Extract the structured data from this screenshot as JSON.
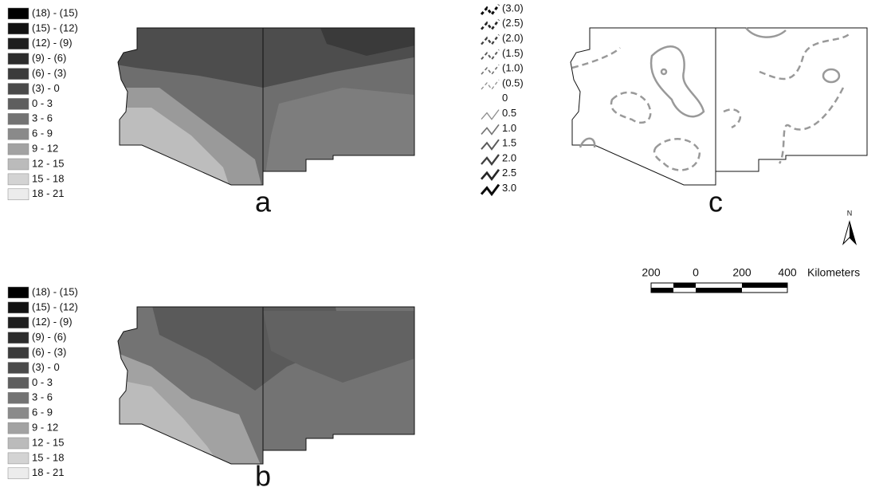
{
  "legend_a": {
    "items": [
      "(18) - (15)",
      "(15) - (12)",
      "(12) - (9)",
      "(9) - (6)",
      "(6) - (3)",
      "(3) - 0",
      "0 - 3",
      "3 - 6",
      "6 - 9",
      "9 - 12",
      "12 - 15",
      "15 - 18",
      "18 - 21"
    ],
    "colors": [
      "#000000",
      "#111111",
      "#1e1e1e",
      "#2c2c2c",
      "#3b3b3b",
      "#4a4a4a",
      "#5e5e5e",
      "#737373",
      "#8a8a8a",
      "#a2a2a2",
      "#bbbbbb",
      "#d3d3d3",
      "#ececec"
    ]
  },
  "legend_b": {
    "items": [
      "(18) - (15)",
      "(15) - (12)",
      "(12) - (9)",
      "(9) - (6)",
      "(6) - (3)",
      "(3) - 0",
      "0 - 3",
      "3 - 6",
      "6 - 9",
      "9 - 12",
      "12 - 15",
      "15 - 18",
      "18 - 21"
    ],
    "colors": [
      "#000000",
      "#111111",
      "#1e1e1e",
      "#2c2c2c",
      "#3b3b3b",
      "#4a4a4a",
      "#5e5e5e",
      "#737373",
      "#8a8a8a",
      "#a2a2a2",
      "#bbbbbb",
      "#d3d3d3",
      "#ececec"
    ]
  },
  "contour_legend": {
    "items": [
      "(3.0)",
      "(2.5)",
      "(2.0)",
      "(1.5)",
      "(1.0)",
      "(0.5)",
      "0",
      "0.5",
      "1.0",
      "1.5",
      "2.0",
      "2.5",
      "3.0"
    ]
  },
  "panels": [
    "a",
    "b",
    "c"
  ],
  "scale_bar": {
    "labels": [
      "200",
      "0",
      "200",
      "400"
    ],
    "unit": "Kilometers"
  },
  "north_arrow": "N"
}
